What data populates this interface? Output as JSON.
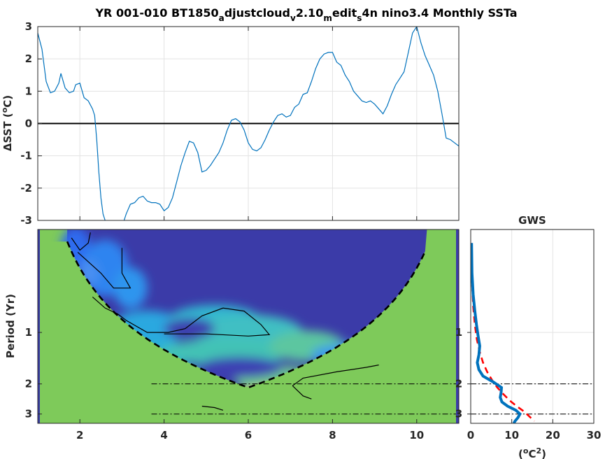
{
  "figure": {
    "title_parts": [
      "YR 001-010 BT1850",
      "a",
      "djustcloud",
      "v",
      "2.10",
      "m",
      "edit",
      "s",
      "4n nino3.4 Monthly SSTa"
    ]
  },
  "chart_data": [
    {
      "type": "line",
      "panel": "timeseries",
      "ylabel_parts": [
        "ΔSST (",
        "o",
        "C)"
      ],
      "xlabel": "",
      "xlim": [
        1,
        11
      ],
      "ylim": [
        -3,
        3
      ],
      "xticks": [
        2,
        4,
        6,
        8,
        10
      ],
      "yticks": [
        3,
        2,
        1,
        0,
        -1,
        -2,
        -3
      ],
      "grid": true,
      "zero_line": true,
      "line_color": "#0072BD",
      "series": [
        {
          "x": [
            1.0,
            1.1,
            1.2,
            1.3,
            1.4,
            1.5,
            1.55,
            1.65,
            1.75,
            1.85,
            1.9,
            2.0,
            2.1,
            2.2,
            2.3,
            2.35,
            2.4,
            2.45,
            2.5,
            2.55,
            2.6,
            2.62,
            2.7,
            2.8,
            2.9,
            3.0,
            3.1,
            3.2,
            3.3,
            3.4,
            3.5,
            3.6,
            3.7,
            3.8,
            3.9,
            4.0,
            4.1,
            4.2,
            4.3,
            4.4,
            4.5,
            4.6,
            4.7,
            4.8,
            4.9,
            5.0,
            5.1,
            5.2,
            5.3,
            5.4,
            5.5,
            5.6,
            5.7,
            5.8,
            5.9,
            6.0,
            6.1,
            6.2,
            6.3,
            6.4,
            6.5,
            6.6,
            6.7,
            6.8,
            6.9,
            7.0,
            7.1,
            7.2,
            7.3,
            7.4,
            7.5,
            7.6,
            7.7,
            7.8,
            7.9,
            8.0,
            8.1,
            8.2,
            8.3,
            8.4,
            8.5,
            8.6,
            8.7,
            8.8,
            8.9,
            9.0,
            9.1,
            9.2,
            9.3,
            9.4,
            9.5,
            9.6,
            9.7,
            9.8,
            9.9,
            10.0,
            10.1,
            10.2,
            10.3,
            10.4,
            10.5,
            10.6,
            10.7,
            10.8,
            10.9,
            11.0
          ],
          "y": [
            2.8,
            2.3,
            1.3,
            0.95,
            1.0,
            1.25,
            1.55,
            1.1,
            0.95,
            1.0,
            1.2,
            1.25,
            0.8,
            0.7,
            0.45,
            0.25,
            -0.5,
            -1.5,
            -2.3,
            -2.8,
            -3.0,
            -3.2,
            -3.4,
            -3.5,
            -3.4,
            -3.2,
            -2.8,
            -2.5,
            -2.45,
            -2.3,
            -2.25,
            -2.4,
            -2.45,
            -2.45,
            -2.5,
            -2.7,
            -2.6,
            -2.3,
            -1.8,
            -1.3,
            -0.9,
            -0.55,
            -0.6,
            -0.9,
            -1.5,
            -1.45,
            -1.3,
            -1.1,
            -0.9,
            -0.6,
            -0.2,
            0.1,
            0.15,
            0.05,
            -0.2,
            -0.6,
            -0.8,
            -0.85,
            -0.75,
            -0.5,
            -0.2,
            0.05,
            0.25,
            0.3,
            0.2,
            0.25,
            0.5,
            0.6,
            0.9,
            0.95,
            1.3,
            1.7,
            2.0,
            2.15,
            2.2,
            2.2,
            1.9,
            1.8,
            1.5,
            1.3,
            1.0,
            0.85,
            0.7,
            0.65,
            0.7,
            0.6,
            0.45,
            0.3,
            0.55,
            0.9,
            1.2,
            1.4,
            1.6,
            2.2,
            2.8,
            3.0,
            2.5,
            2.1,
            1.8,
            1.5,
            1.0,
            0.3,
            -0.45,
            -0.5,
            -0.6,
            -0.7
          ]
        }
      ]
    },
    {
      "type": "heatmap",
      "panel": "wavelet",
      "ylabel": "Period (Yr)",
      "xlim": [
        1,
        11
      ],
      "xticks": [
        2,
        4,
        6,
        8,
        10
      ],
      "yticks": [
        1,
        2,
        3
      ],
      "ylim": [
        0.25,
        3.4
      ],
      "colormap": "parula",
      "contour_color": "#000000",
      "coi_style": "dashed",
      "reference_periods": [
        2,
        3
      ]
    },
    {
      "type": "line",
      "panel": "global_wavelet_spectrum",
      "title": "GWS",
      "xlabel_parts": [
        "(",
        "o",
        "C",
        "2",
        ")"
      ],
      "xlim": [
        0,
        30
      ],
      "xticks": [
        0,
        10,
        20,
        30
      ],
      "yticks": [
        1,
        2,
        3
      ],
      "ylim": [
        0.25,
        3.4
      ],
      "series": [
        {
          "style": "solid",
          "color": "#0072BD",
          "x": [
            0.2,
            0.3,
            0.6,
            1.0,
            1.4,
            1.8,
            2.2,
            2.0,
            1.6,
            2.0,
            3.0,
            5.5,
            7.5,
            7.4,
            7.2,
            7.6,
            9.0,
            11.0,
            12.0,
            11.5,
            10.8,
            10.5
          ],
          "y": [
            0.3,
            0.45,
            0.6,
            0.75,
            0.9,
            1.05,
            1.2,
            1.35,
            1.5,
            1.65,
            1.8,
            1.95,
            2.1,
            2.25,
            2.4,
            2.55,
            2.7,
            2.85,
            3.0,
            3.15,
            3.3,
            3.4
          ]
        },
        {
          "style": "dashed",
          "color": "#FF0000",
          "x": [
            0.1,
            0.3,
            0.6,
            1.0,
            1.5,
            2.2,
            3.0,
            4.0,
            5.2,
            6.5,
            8.0,
            9.5,
            11.2,
            13.0,
            15.5
          ],
          "y": [
            0.3,
            0.5,
            0.7,
            0.9,
            1.1,
            1.3,
            1.5,
            1.7,
            1.9,
            2.1,
            2.3,
            2.5,
            2.7,
            2.9,
            3.3
          ]
        }
      ]
    }
  ]
}
